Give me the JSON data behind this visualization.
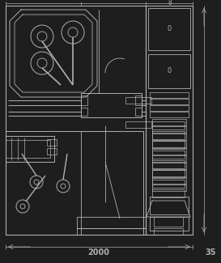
{
  "bg_color": "#1e1e1e",
  "line_color": "#b0b0b0",
  "dim_bottom": "2000",
  "dim_right": "35",
  "label_8": "8",
  "label_0a": "0",
  "label_0b": "0",
  "figsize": [
    2.73,
    3.25
  ],
  "dpi": 100
}
